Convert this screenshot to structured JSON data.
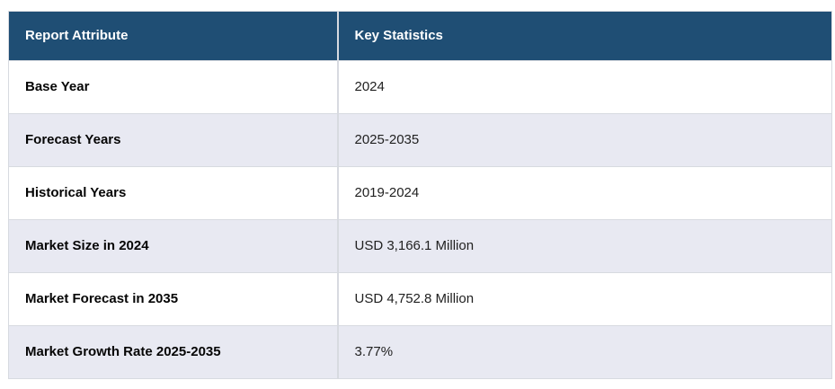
{
  "table": {
    "headers": {
      "attribute": "Report Attribute",
      "statistics": "Key Statistics"
    },
    "rows": [
      {
        "attribute": "Base Year",
        "value": "2024"
      },
      {
        "attribute": "Forecast Years",
        "value": "2025-2035"
      },
      {
        "attribute": "Historical Years",
        "value": "2019-2024"
      },
      {
        "attribute": "Market Size in 2024",
        "value": "USD 3,166.1 Million"
      },
      {
        "attribute": "Market Forecast in 2035",
        "value": "USD 4,752.8 Million"
      },
      {
        "attribute": "Market Growth Rate 2025-2035",
        "value": "3.77%"
      }
    ],
    "colors": {
      "header_bg": "#1f4e74",
      "header_text": "#ffffff",
      "row_bg": "#ffffff",
      "alt_row_bg": "#e8e9f2",
      "border": "#d7dae0"
    }
  },
  "chart_data": {
    "type": "table",
    "title": "",
    "columns": [
      "Report Attribute",
      "Key Statistics"
    ],
    "cells": [
      [
        "Base Year",
        "2024"
      ],
      [
        "Forecast Years",
        "2025-2035"
      ],
      [
        "Historical Years",
        "2019-2024"
      ],
      [
        "Market Size in 2024",
        "USD 3,166.1 Million"
      ],
      [
        "Market Forecast in 2035",
        "USD 4,752.8 Million"
      ],
      [
        "Market Growth Rate 2025-2035",
        "3.77%"
      ]
    ]
  }
}
